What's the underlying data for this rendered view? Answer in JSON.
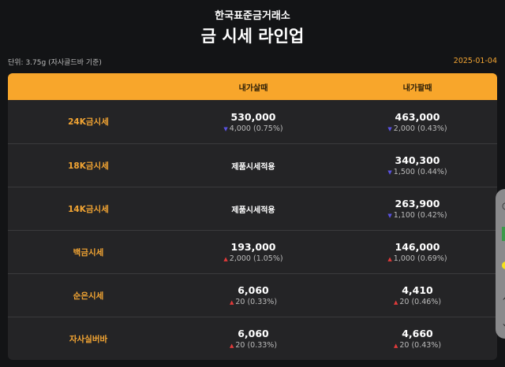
{
  "header": {
    "brand": "한국표준금거래소",
    "title": "금 시세 라인업",
    "unit": "단위: 3.75g (자사골드바 기준)",
    "date": "2025-01-04"
  },
  "colors": {
    "accent": "#f8a62b",
    "down": "#5a52e0",
    "up": "#e03a3a"
  },
  "table": {
    "columns": [
      "",
      "내가살때",
      "내가팔때"
    ],
    "rows": [
      {
        "name": "24K금시세",
        "buy": {
          "price": "530,000",
          "dir": "down",
          "change": "4,000 (0.75%)"
        },
        "sell": {
          "price": "463,000",
          "dir": "down",
          "change": "2,000 (0.43%)"
        }
      },
      {
        "name": "18K금시세",
        "buy": {
          "note": "제품시세적용"
        },
        "sell": {
          "price": "340,300",
          "dir": "down",
          "change": "1,500 (0.44%)"
        }
      },
      {
        "name": "14K금시세",
        "buy": {
          "note": "제품시세적용"
        },
        "sell": {
          "price": "263,900",
          "dir": "down",
          "change": "1,100 (0.42%)"
        }
      },
      {
        "name": "백금시세",
        "buy": {
          "price": "193,000",
          "dir": "up",
          "change": "2,000 (1.05%)"
        },
        "sell": {
          "price": "146,000",
          "dir": "up",
          "change": "1,000 (0.69%)"
        }
      },
      {
        "name": "순은시세",
        "buy": {
          "price": "6,060",
          "dir": "up",
          "change": "20 (0.33%)"
        },
        "sell": {
          "price": "4,410",
          "dir": "up",
          "change": "20 (0.46%)"
        }
      },
      {
        "name": "자사실버바",
        "buy": {
          "price": "6,060",
          "dir": "up",
          "change": "20 (0.33%)"
        },
        "sell": {
          "price": "4,660",
          "dir": "up",
          "change": "20 (0.43%)"
        }
      }
    ]
  }
}
